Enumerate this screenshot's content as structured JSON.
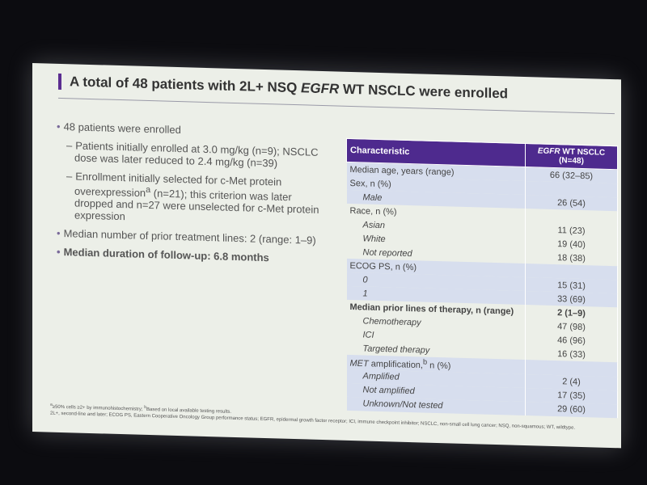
{
  "header": {
    "title": [
      "A total of 48 patients with 2L+ NSQ ",
      {
        "t": "EGFR",
        "i": true
      },
      " WT NSCLC were enrolled"
    ]
  },
  "bullets": [
    {
      "text": "48 patients were enrolled",
      "sub": [
        "Patients initially enrolled at 3.0 mg/kg (n=9); NSCLC dose was later reduced to 2.4 mg/kg (n=39)",
        [
          "Enrollment initially selected for c-Met protein overexpression",
          {
            "t": "a",
            "sup": true
          },
          " (n=21); this criterion was later dropped and n=27 were unselected for c-Met protein expression"
        ]
      ]
    },
    {
      "text": "Median number of prior treatment lines: 2 (range: 1–9)"
    },
    {
      "text": "Median duration of follow-up: 6.8 months",
      "bold": true
    }
  ],
  "table": {
    "header": [
      "Characteristic",
      [
        {
          "t": "EGFR",
          "i": true
        },
        " WT NSCLC"
      ],
      "(N=48)"
    ],
    "rows": [
      {
        "label": "Median age, years (range)",
        "value": "66 (32–85)",
        "shaded": true
      },
      {
        "label": "Sex, n (%)",
        "shaded": true
      },
      {
        "label": "Male",
        "value": "26 (54)",
        "indent": true,
        "shaded": true
      },
      {
        "label": "Race, n (%)"
      },
      {
        "label": "Asian",
        "value": "11 (23)",
        "indent": true
      },
      {
        "label": "White",
        "value": "19 (40)",
        "indent": true
      },
      {
        "label": "Not reported",
        "value": "18 (38)",
        "indent": true
      },
      {
        "label": "ECOG PS, n (%)",
        "shaded": true
      },
      {
        "label": "0",
        "value": "15 (31)",
        "indent": true,
        "shaded": true
      },
      {
        "label": "1",
        "value": "33 (69)",
        "indent": true,
        "shaded": true
      },
      {
        "label": "Median prior lines of therapy, n (range)",
        "value": "2 (1–9)",
        "bold": true
      },
      {
        "label": "Chemotherapy",
        "value": "47 (98)",
        "indent": true
      },
      {
        "label": "ICI",
        "value": "46 (96)",
        "indent": true
      },
      {
        "label": "Targeted therapy",
        "value": "16 (33)",
        "indent": true
      },
      {
        "label": [
          {
            "t": "MET",
            "i": true
          },
          " amplification,",
          {
            "t": "b",
            "sup": true
          },
          " n (%)"
        ],
        "shaded": true
      },
      {
        "label": "Amplified",
        "value": "2 (4)",
        "indent": true,
        "shaded": true
      },
      {
        "label": "Not amplified",
        "value": "17 (35)",
        "indent": true,
        "shaded": true
      },
      {
        "label": "Unknown/Not tested",
        "value": "29 (60)",
        "indent": true,
        "shaded": true
      }
    ]
  },
  "footnotes": [
    [
      {
        "t": "a",
        "sup": true
      },
      "≥50% cells ≥2+ by immunohistochemistry; ",
      {
        "t": "b",
        "sup": true
      },
      "Based on local available testing results."
    ],
    "2L+, second-line and later; ECOG PS, Eastern Cooperative Oncology Group performance status; EGFR, epidermal growth factor receptor; ICI, immune checkpoint inhibitor; NSCLC, non-small cell lung cancer; NSQ, non-squamous; WT, wildtype."
  ]
}
